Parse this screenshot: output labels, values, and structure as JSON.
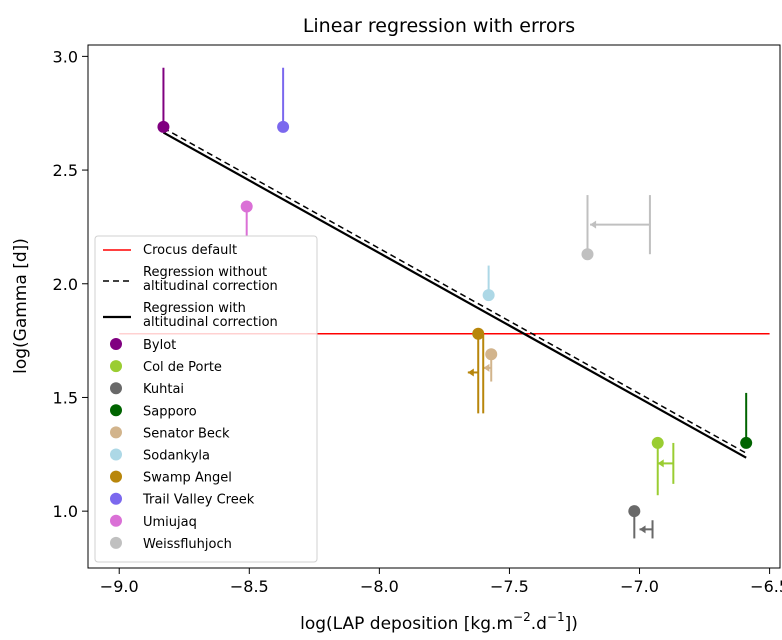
{
  "chart_data": {
    "type": "scatter",
    "title": "Linear regression with errors",
    "xlabel": "log(LAP deposition [kg.m",
    "xlabel_sup1": "−2",
    "xlabel_mid": ".d",
    "xlabel_sup2": "−1",
    "xlabel_end": "])",
    "ylabel": "log(Gamma [d])",
    "xlim": [
      -9.12,
      -6.46
    ],
    "ylim": [
      0.75,
      3.05
    ],
    "x_ticks": [
      -9.0,
      -8.5,
      -8.0,
      -7.5,
      -7.0,
      -6.5
    ],
    "x_tick_labels": [
      "−9.0",
      "−8.5",
      "−8.0",
      "−7.5",
      "−7.0",
      "−6.5"
    ],
    "y_ticks": [
      1.0,
      1.5,
      2.0,
      2.5,
      3.0
    ],
    "y_tick_labels": [
      "1.0",
      "1.5",
      "2.0",
      "2.5",
      "3.0"
    ],
    "grid": false,
    "legend_position": "lower-left",
    "lines": [
      {
        "name": "Crocus default",
        "color": "#ff0000",
        "style": "solid",
        "x": [
          -9.0,
          -6.5
        ],
        "y": [
          1.78,
          1.78
        ]
      },
      {
        "name": "Regression without altitudinal correction",
        "name_lines": [
          "Regression without",
          "altitudinal correction"
        ],
        "color": "#000000",
        "style": "dashed",
        "x": [
          -8.83,
          -6.59
        ],
        "y": [
          2.685,
          1.255
        ]
      },
      {
        "name": "Regression with altitudinal correction",
        "name_lines": [
          "Regression with",
          "altitudinal correction"
        ],
        "color": "#000000",
        "style": "solid",
        "x": [
          -8.83,
          -6.59
        ],
        "y": [
          2.665,
          1.235
        ]
      }
    ],
    "series": [
      {
        "name": "Bylot",
        "color": "#800080",
        "x": -8.83,
        "y": 2.69,
        "yerr_top": 2.95
      },
      {
        "name": "Col de Porte",
        "color": "#9acd32",
        "x": -6.93,
        "y": 1.3,
        "yerr_bottom": 1.07,
        "yerr_x": -6.93,
        "xerr_line_x": -6.87,
        "xerr_line_y": [
          1.12,
          1.3
        ],
        "xerr_arrow_from": -6.87,
        "xerr_arrow_to": -6.93,
        "xerr_arrow_y": 1.21
      },
      {
        "name": "Kuhtai",
        "color": "#696969",
        "x": -7.02,
        "y": 1.0,
        "yerr_bottom": 0.88,
        "xerr_line_x": -6.95,
        "xerr_line_y": [
          0.88,
          0.96
        ],
        "xerr_arrow_from": -6.95,
        "xerr_arrow_to": -7.0,
        "xerr_arrow_y": 0.92
      },
      {
        "name": "Sapporo",
        "color": "#006400",
        "x": -6.59,
        "y": 1.3,
        "yerr_top": 1.52
      },
      {
        "name": "Senator Beck",
        "color": "#d2b48c",
        "x": -7.57,
        "y": 1.69,
        "yerr_bottom": 1.57,
        "xerr_line_x": -7.57,
        "xerr_arrow_from": -7.57,
        "xerr_arrow_to": -7.6,
        "xerr_arrow_y": 1.63
      },
      {
        "name": "Sodankyla",
        "color": "#add8e6",
        "x": -7.58,
        "y": 1.95,
        "yerr_top": 2.08
      },
      {
        "name": "Swamp Angel",
        "color": "#b8860b",
        "x": -7.62,
        "y": 1.78,
        "yerr_bottom": 1.43,
        "yerr_bottom2": 1.43,
        "xerr_line_x": -7.64,
        "xerr_arrow_from": -7.62,
        "xerr_arrow_to": -7.66,
        "xerr_arrow_y": 1.61
      },
      {
        "name": "Trail Valley Creek",
        "color": "#7b68ee",
        "x": -8.37,
        "y": 2.69,
        "yerr_top": 2.95
      },
      {
        "name": "Umiujaq",
        "color": "#da70d6",
        "x": -8.51,
        "y": 2.34,
        "yerr_bottom": 2.21
      },
      {
        "name": "Weissfluhjoch",
        "color": "#c0c0c0",
        "x": -7.2,
        "y": 2.13,
        "yerr_top": 2.39,
        "xerr_line_x": -6.96,
        "xerr_line_y": [
          2.13,
          2.39
        ],
        "xerr_arrow_from": -6.96,
        "xerr_arrow_to": -7.19,
        "xerr_arrow_y": 2.26
      }
    ]
  }
}
